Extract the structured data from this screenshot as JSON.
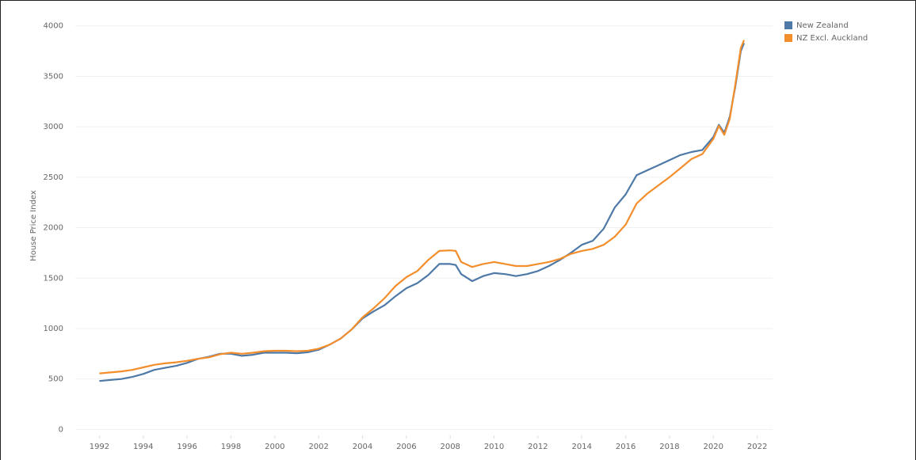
{
  "chart_data": {
    "type": "line",
    "y_label": "House Price Index",
    "x": [
      1992,
      1992.5,
      1993,
      1993.5,
      1994,
      1994.5,
      1995,
      1995.5,
      1996,
      1996.5,
      1997,
      1997.5,
      1998,
      1998.5,
      1999,
      1999.5,
      2000,
      2000.5,
      2001,
      2001.5,
      2002,
      2002.5,
      2003,
      2003.5,
      2004,
      2004.5,
      2005,
      2005.5,
      2006,
      2006.5,
      2007,
      2007.5,
      2008,
      2008.25,
      2008.5,
      2009,
      2009.5,
      2010,
      2010.5,
      2011,
      2011.5,
      2012,
      2012.5,
      2013,
      2013.5,
      2014,
      2014.5,
      2015,
      2015.5,
      2016,
      2016.5,
      2017,
      2017.5,
      2018,
      2018.5,
      2019,
      2019.5,
      2020,
      2020.25,
      2020.5,
      2020.75,
      2021,
      2021.25,
      2021.4
    ],
    "series": [
      {
        "name": "New Zealand",
        "color": "#4e79a7",
        "values": [
          480,
          490,
          500,
          520,
          550,
          590,
          610,
          630,
          660,
          700,
          720,
          750,
          750,
          730,
          740,
          760,
          760,
          760,
          755,
          765,
          790,
          840,
          900,
          990,
          1100,
          1170,
          1230,
          1320,
          1400,
          1450,
          1530,
          1640,
          1640,
          1630,
          1540,
          1470,
          1520,
          1550,
          1540,
          1520,
          1540,
          1570,
          1620,
          1680,
          1750,
          1830,
          1870,
          1990,
          2200,
          2330,
          2520,
          2570,
          2620,
          2670,
          2720,
          2750,
          2770,
          2900,
          3020,
          2940,
          3100,
          3400,
          3750,
          3830
        ]
      },
      {
        "name": "NZ Excl. Auckland",
        "color": "#f28e2b",
        "values": [
          555,
          565,
          575,
          590,
          615,
          640,
          655,
          665,
          680,
          700,
          715,
          745,
          760,
          750,
          760,
          775,
          780,
          780,
          775,
          780,
          800,
          840,
          900,
          990,
          1110,
          1200,
          1300,
          1420,
          1510,
          1570,
          1680,
          1770,
          1775,
          1770,
          1660,
          1610,
          1640,
          1660,
          1640,
          1620,
          1620,
          1640,
          1660,
          1690,
          1740,
          1770,
          1790,
          1830,
          1910,
          2030,
          2240,
          2340,
          2420,
          2500,
          2590,
          2680,
          2730,
          2880,
          3010,
          2920,
          3080,
          3420,
          3780,
          3860
        ]
      }
    ],
    "xlim": [
      1990.9,
      2022.7
    ],
    "xticks": [
      1992,
      1994,
      1996,
      1998,
      2000,
      2002,
      2004,
      2006,
      2008,
      2010,
      2012,
      2014,
      2016,
      2018,
      2020,
      2022
    ],
    "ylim": [
      -60,
      4100
    ],
    "yticks": [
      0,
      500,
      1000,
      1500,
      2000,
      2500,
      3000,
      3500,
      4000
    ],
    "grid": true,
    "legend": "top-right"
  }
}
